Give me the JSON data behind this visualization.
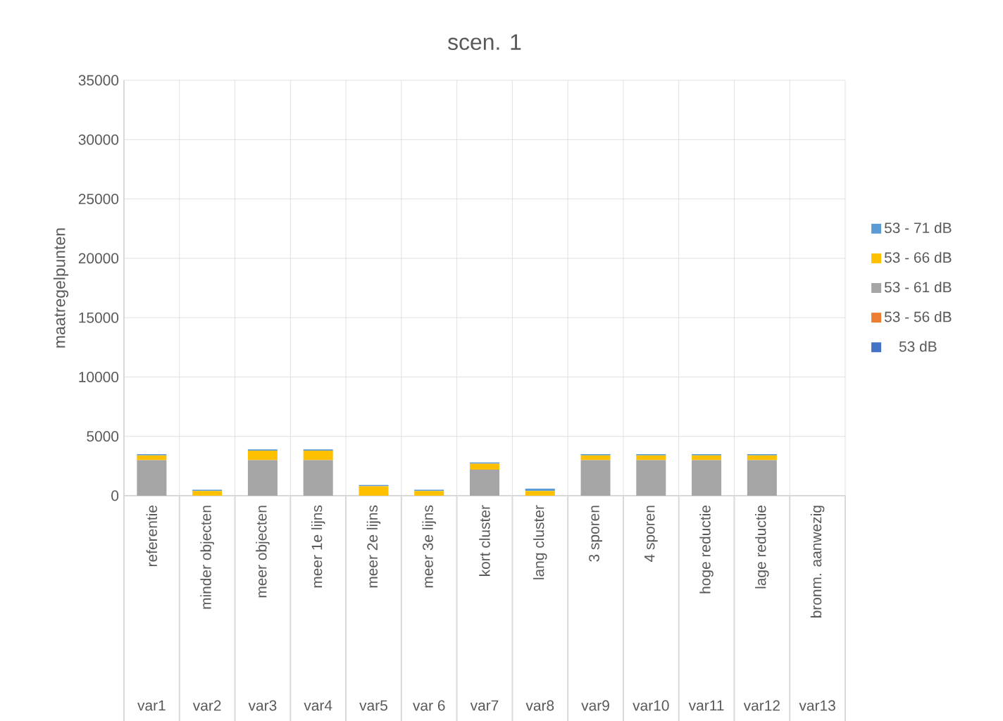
{
  "chart_data": {
    "type": "bar",
    "stacked": true,
    "title": "scen. 1",
    "ylabel": "maatregelpunten",
    "categories": [
      "referentie",
      "minder objecten",
      "meer objecten",
      "meer 1e lijns",
      "meer 2e lijns",
      "meer 3e lijns",
      "kort cluster",
      "lang cluster",
      "3 sporen",
      "4 sporen",
      "hoge reductie",
      "lage reductie",
      "bronm. aanwezig"
    ],
    "annotations": [
      "var1",
      "var2",
      "var3",
      "var4",
      "var5",
      "var 6",
      "var7",
      "var8",
      "var9",
      "var10",
      "var11",
      "var12",
      "var13"
    ],
    "series": [
      {
        "name": "53 dB",
        "color": "#4472c4",
        "values": [
          0,
          0,
          0,
          0,
          0,
          0,
          0,
          0,
          0,
          0,
          0,
          0,
          0
        ]
      },
      {
        "name": "53 - 56 dB",
        "color": "#ed7d31",
        "values": [
          0,
          0,
          0,
          0,
          0,
          0,
          0,
          0,
          0,
          0,
          0,
          0,
          0
        ]
      },
      {
        "name": "53 - 61 dB",
        "color": "#a5a5a5",
        "values": [
          3000,
          0,
          3000,
          3000,
          0,
          0,
          2200,
          0,
          3000,
          3000,
          3000,
          3000,
          0
        ]
      },
      {
        "name": "53 - 66 dB",
        "color": "#ffc000",
        "values": [
          400,
          400,
          800,
          800,
          800,
          400,
          500,
          400,
          400,
          400,
          400,
          400,
          0
        ]
      },
      {
        "name": "53 - 71 dB",
        "color": "#5b9bd5",
        "values": [
          100,
          100,
          100,
          100,
          100,
          100,
          100,
          200,
          100,
          100,
          100,
          100,
          0
        ]
      }
    ],
    "ylim": [
      0,
      35000
    ],
    "yticks": [
      0,
      5000,
      10000,
      15000,
      20000,
      25000,
      30000,
      35000
    ],
    "grid": true,
    "legend": "right"
  }
}
